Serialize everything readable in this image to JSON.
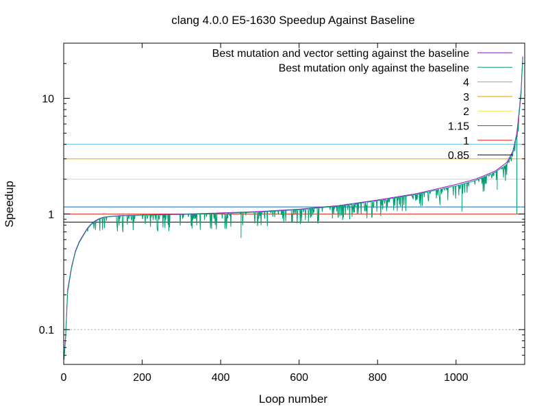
{
  "chart_data": {
    "type": "line",
    "title": "clang 4.0.0 E5-1630 Speedup Against Baseline",
    "xlabel": "Loop number",
    "ylabel": "Speedup",
    "yscale": "log",
    "xlim": [
      0,
      1175
    ],
    "ylim": [
      0.05,
      30
    ],
    "x_ticks": [
      0,
      200,
      400,
      600,
      800,
      1000
    ],
    "y_ticks": [
      {
        "value": 0.1,
        "label": "0.1"
      },
      {
        "value": 1,
        "label": "1"
      },
      {
        "value": 10,
        "label": "10"
      }
    ],
    "grid": "dotted horizontal line at 0.1",
    "legend_position": "top-right",
    "series": [
      {
        "name": "Best mutation and vector setting against the baseline",
        "color": "#9400d3",
        "kind": "curve",
        "points": [
          [
            1,
            0.058
          ],
          [
            5,
            0.09
          ],
          [
            10,
            0.22
          ],
          [
            20,
            0.35
          ],
          [
            30,
            0.48
          ],
          [
            40,
            0.58
          ],
          [
            50,
            0.66
          ],
          [
            60,
            0.75
          ],
          [
            70,
            0.82
          ],
          [
            80,
            0.87
          ],
          [
            90,
            0.91
          ],
          [
            100,
            0.935
          ],
          [
            120,
            0.955
          ],
          [
            150,
            0.97
          ],
          [
            200,
            0.98
          ],
          [
            300,
            0.995
          ],
          [
            400,
            1.02
          ],
          [
            500,
            1.05
          ],
          [
            600,
            1.1
          ],
          [
            700,
            1.18
          ],
          [
            800,
            1.32
          ],
          [
            900,
            1.5
          ],
          [
            1000,
            1.8
          ],
          [
            1050,
            2.0
          ],
          [
            1100,
            2.35
          ],
          [
            1130,
            2.8
          ],
          [
            1145,
            3.5
          ],
          [
            1155,
            5.0
          ],
          [
            1162,
            8.5
          ],
          [
            1166,
            12
          ],
          [
            1168,
            17
          ],
          [
            1170,
            23
          ]
        ]
      },
      {
        "name": "Best mutation only against the baseline",
        "color": "#009e73",
        "kind": "curve-with-dips",
        "points": [
          [
            1,
            0.055
          ],
          [
            5,
            0.085
          ],
          [
            10,
            0.21
          ],
          [
            20,
            0.34
          ],
          [
            30,
            0.47
          ],
          [
            40,
            0.57
          ],
          [
            50,
            0.65
          ],
          [
            60,
            0.74
          ],
          [
            70,
            0.81
          ],
          [
            80,
            0.86
          ],
          [
            90,
            0.9
          ],
          [
            100,
            0.93
          ],
          [
            120,
            0.95
          ],
          [
            150,
            0.965
          ],
          [
            200,
            0.975
          ],
          [
            300,
            0.99
          ],
          [
            400,
            1.01
          ],
          [
            500,
            1.04
          ],
          [
            600,
            1.09
          ],
          [
            700,
            1.17
          ],
          [
            800,
            1.3
          ],
          [
            900,
            1.48
          ],
          [
            1000,
            1.75
          ],
          [
            1050,
            1.95
          ],
          [
            1100,
            2.3
          ],
          [
            1130,
            2.7
          ],
          [
            1145,
            3.4
          ],
          [
            1155,
            4.8
          ],
          [
            1162,
            8.0
          ],
          [
            1166,
            11
          ],
          [
            1168,
            16
          ],
          [
            1170,
            22
          ]
        ]
      },
      {
        "name": "4",
        "color": "#56b4e9",
        "kind": "hline",
        "value": 4
      },
      {
        "name": "3",
        "color": "#e69f00",
        "kind": "hline",
        "value": 3
      },
      {
        "name": "2",
        "color": "#f0e442",
        "kind": "hline",
        "value": 2
      },
      {
        "name": "1.15",
        "color": "#0072b2",
        "kind": "hline",
        "value": 1.15
      },
      {
        "name": "1",
        "color": "#e51e10",
        "kind": "hline",
        "value": 1
      },
      {
        "name": "0.85",
        "color": "#000000",
        "kind": "hline",
        "value": 0.85
      }
    ]
  }
}
